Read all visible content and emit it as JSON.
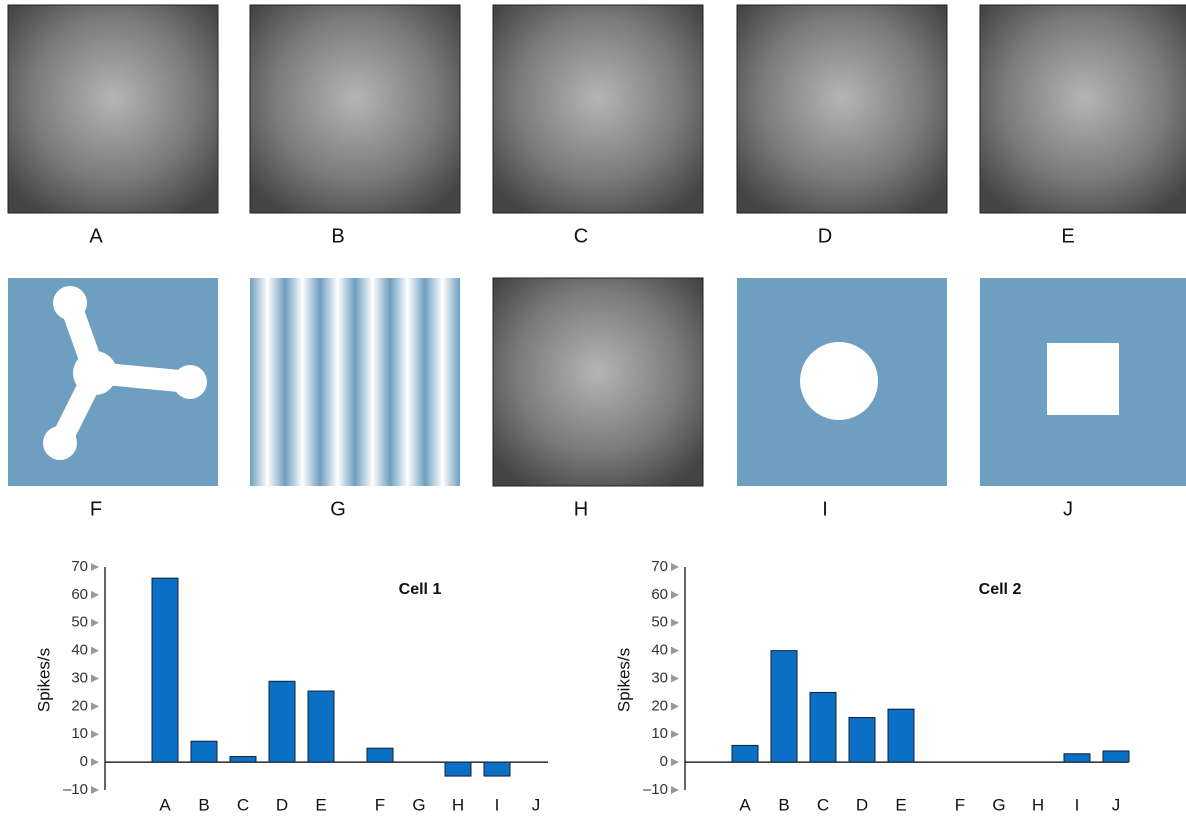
{
  "panels": [
    {
      "label": "A"
    },
    {
      "label": "B"
    },
    {
      "label": "C"
    },
    {
      "label": "D"
    },
    {
      "label": "E"
    },
    {
      "label": "F"
    },
    {
      "label": "G"
    },
    {
      "label": "H"
    },
    {
      "label": "I"
    },
    {
      "label": "J"
    }
  ],
  "chart_data": [
    {
      "type": "bar",
      "title": "Cell 1",
      "y_label": "Spikes/s",
      "categories": [
        "A",
        "B",
        "C",
        "D",
        "E",
        "F",
        "G",
        "H",
        "I",
        "J"
      ],
      "values": [
        66,
        7.5,
        2,
        29,
        25.5,
        5,
        0,
        -5,
        -5,
        0
      ],
      "color": "#0b6fc6",
      "ylim": [
        -10,
        70
      ],
      "yticks": [
        {
          "value": -10,
          "label": "–10"
        },
        0,
        10,
        20,
        30,
        40,
        50,
        60,
        70
      ]
    },
    {
      "type": "bar",
      "title": "Cell 2",
      "y_label": "Spikes/s",
      "categories": [
        "A",
        "B",
        "C",
        "D",
        "E",
        "F",
        "G",
        "H",
        "I",
        "J"
      ],
      "values": [
        6,
        40,
        25,
        16,
        19,
        0,
        0,
        0,
        3,
        4
      ],
      "color": "#0b6fc6",
      "ylim": [
        -10,
        70
      ],
      "yticks": [
        {
          "value": -10,
          "label": "–10"
        },
        0,
        10,
        20,
        30,
        40,
        50,
        60,
        70
      ]
    }
  ]
}
